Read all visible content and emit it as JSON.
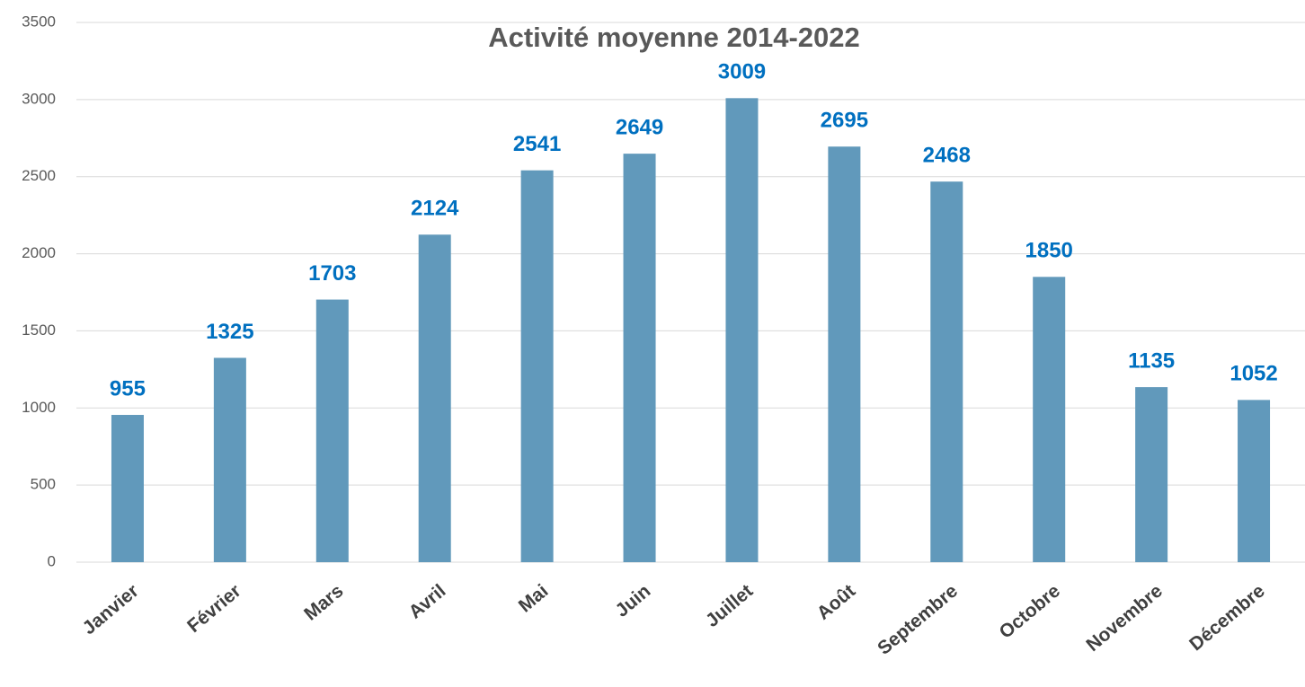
{
  "chart_data": {
    "type": "bar",
    "title": "Activité moyenne 2014-2022",
    "categories": [
      "Janvier",
      "Février",
      "Mars",
      "Avril",
      "Mai",
      "Juin",
      "Juillet",
      "Août",
      "Septembre",
      "Octobre",
      "Novembre",
      "Décembre"
    ],
    "values": [
      955,
      1325,
      1703,
      2124,
      2541,
      2649,
      3009,
      2695,
      2468,
      1850,
      1135,
      1052
    ],
    "color": "#6199bb",
    "label_color": "#0070c0",
    "ylim": [
      0,
      3500
    ],
    "yticks": [
      0,
      500,
      1000,
      1500,
      2000,
      2500,
      3000,
      3500
    ],
    "grid": true
  }
}
